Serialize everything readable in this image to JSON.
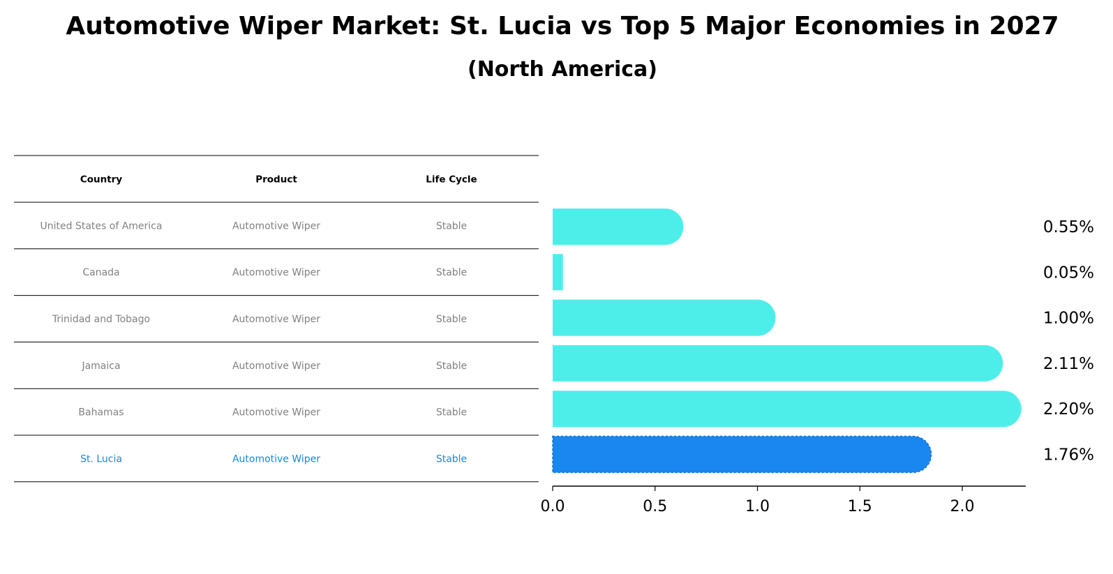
{
  "title": "Automotive Wiper Market: St. Lucia vs Top 5 Major Economies in 2027",
  "subtitle": "(North America)",
  "table": {
    "headers": [
      "Country",
      "Product",
      "Life Cycle"
    ],
    "rows": [
      {
        "country": "United States of America",
        "product": "Automotive Wiper",
        "life_cycle": "Stable",
        "highlight": false
      },
      {
        "country": "Canada",
        "product": "Automotive Wiper",
        "life_cycle": "Stable",
        "highlight": false
      },
      {
        "country": "Trinidad and Tobago",
        "product": "Automotive Wiper",
        "life_cycle": "Stable",
        "highlight": false
      },
      {
        "country": "Jamaica",
        "product": "Automotive Wiper",
        "life_cycle": "Stable",
        "highlight": false
      },
      {
        "country": "Bahamas",
        "product": "Automotive Wiper",
        "life_cycle": "Stable",
        "highlight": false
      },
      {
        "country": "St. Lucia",
        "product": "Automotive Wiper",
        "life_cycle": "Stable",
        "highlight": true
      }
    ]
  },
  "colors": {
    "bar": "#4deeea",
    "highlight_bar": "#1a86f0",
    "highlight_text": "#1a86d6",
    "cell_text": "#808080"
  },
  "chart_data": {
    "type": "bar",
    "orientation": "horizontal",
    "title": "Automotive Wiper Market: St. Lucia vs Top 5 Major Economies in 2027",
    "subtitle": "(North America)",
    "categories": [
      "United States of America",
      "Canada",
      "Trinidad and Tobago",
      "Jamaica",
      "Bahamas",
      "St. Lucia"
    ],
    "values": [
      0.55,
      0.05,
      1.0,
      2.11,
      2.2,
      1.76
    ],
    "value_labels": [
      "0.55%",
      "0.05%",
      "1.00%",
      "2.11%",
      "2.20%",
      "1.76%"
    ],
    "highlight": "St. Lucia",
    "xlim": [
      0,
      2.31
    ],
    "xticks": [
      0.0,
      0.5,
      1.0,
      1.5,
      2.0
    ],
    "xtick_labels": [
      "0.0",
      "0.5",
      "1.0",
      "1.5",
      "2.0"
    ],
    "xlabel": "",
    "ylabel": ""
  }
}
